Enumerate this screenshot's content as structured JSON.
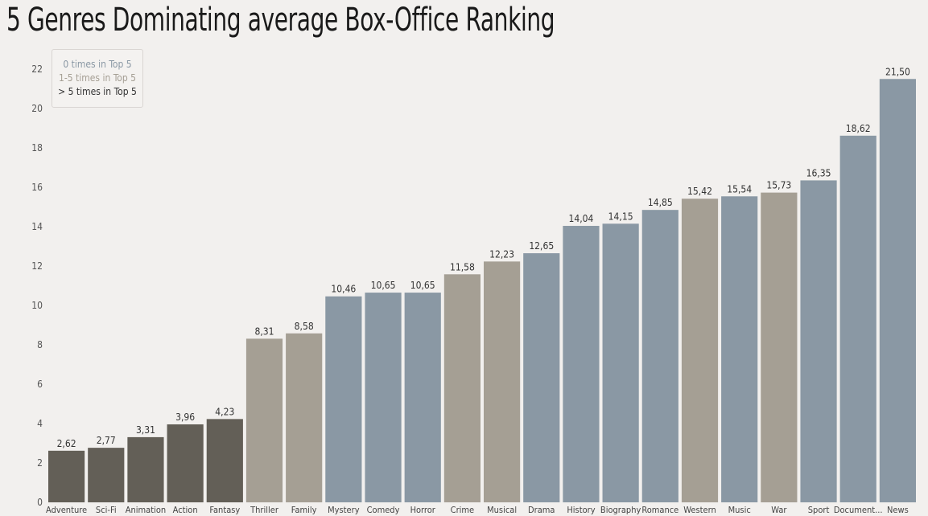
{
  "chart_data": {
    "type": "bar",
    "title": "5 Genres Dominating average Box-Office Ranking",
    "xlabel": "",
    "ylabel": "",
    "ylim": [
      0,
      22.5
    ],
    "yticks": [
      0,
      2,
      4,
      6,
      8,
      10,
      12,
      14,
      16,
      18,
      20,
      22
    ],
    "grid": false,
    "legend": {
      "placement": "top-left",
      "entries": [
        {
          "label": "0 times in Top 5",
          "color": "#8a98a4",
          "text_color": "#8a98a4"
        },
        {
          "label": "1-5 times in Top 5",
          "color": "#a59f94",
          "text_color": "#a59f94"
        },
        {
          "label": "> 5 times in Top 5",
          "color": "#635f57",
          "text_color": "#333333"
        }
      ]
    },
    "categories": [
      "Adventure",
      "Sci-Fi",
      "Animation",
      "Action",
      "Fantasy",
      "Thriller",
      "Family",
      "Mystery",
      "Comedy",
      "Horror",
      "Crime",
      "Musical",
      "Drama",
      "History",
      "Biography",
      "Romance",
      "Western",
      "Music",
      "War",
      "Sport",
      "Document...",
      "News"
    ],
    "values": [
      2.62,
      2.77,
      3.31,
      3.96,
      4.23,
      8.31,
      8.58,
      10.46,
      10.65,
      10.65,
      11.58,
      12.23,
      12.65,
      14.04,
      14.15,
      14.85,
      15.42,
      15.54,
      15.73,
      16.35,
      18.62,
      21.5
    ],
    "value_labels": [
      "2,62",
      "2,77",
      "3,31",
      "3,96",
      "4,23",
      "8,31",
      "8,58",
      "10,46",
      "10,65",
      "10,65",
      "11,58",
      "12,23",
      "12,65",
      "14,04",
      "14,15",
      "14,85",
      "15,42",
      "15,54",
      "15,73",
      "16,35",
      "18,62",
      "21,50"
    ],
    "groups": [
      2,
      2,
      2,
      2,
      2,
      1,
      1,
      0,
      0,
      0,
      1,
      1,
      0,
      0,
      0,
      0,
      1,
      0,
      1,
      0,
      0,
      0
    ]
  }
}
